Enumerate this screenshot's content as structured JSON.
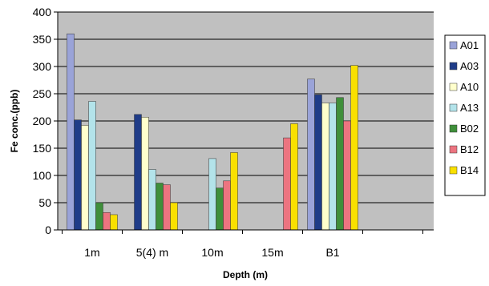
{
  "chart_data": {
    "type": "bar",
    "title": "",
    "xlabel": "Depth (m)",
    "ylabel": "Fe conc.(ppb)",
    "ylim": [
      0,
      400
    ],
    "yticks": [
      0,
      50,
      100,
      150,
      200,
      250,
      300,
      350,
      400
    ],
    "grid": true,
    "legend_position": "right",
    "plot_background": "#c0c0c0",
    "categories": [
      "1m",
      "5(4) m",
      "10m",
      "15m",
      "B1"
    ],
    "series": [
      {
        "name": "A01",
        "color": "#9aa3d8",
        "values": [
          360,
          null,
          null,
          null,
          277
        ]
      },
      {
        "name": "A03",
        "color": "#1f3c88",
        "values": [
          202,
          212,
          null,
          null,
          248
        ]
      },
      {
        "name": "A10",
        "color": "#ffffcc",
        "values": [
          192,
          207,
          null,
          null,
          233
        ]
      },
      {
        "name": "A13",
        "color": "#b3e3ea",
        "values": [
          236,
          111,
          131,
          null,
          233
        ]
      },
      {
        "name": "B02",
        "color": "#3f8f3a",
        "values": [
          50,
          86,
          77,
          null,
          243
        ]
      },
      {
        "name": "B12",
        "color": "#ec7480",
        "values": [
          32,
          83,
          90,
          169,
          200
        ]
      },
      {
        "name": "B14",
        "color": "#f9e000",
        "values": [
          28,
          50,
          142,
          195,
          302
        ]
      }
    ]
  }
}
